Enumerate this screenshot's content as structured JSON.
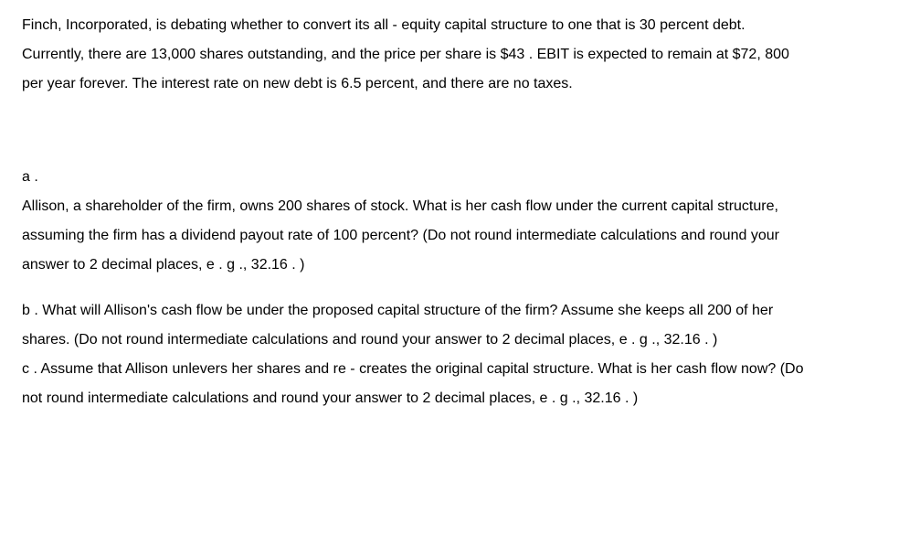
{
  "intro": {
    "line1": "Finch, Incorporated, is debating whether to convert its all - equity capital structure to one that is 30 percent debt.",
    "line2": "Currently, there are 13,000 shares outstanding, and the price per share is $43 .  EBIT is expected to remain at $72, 800",
    "line3": "per year forever. The interest rate on new debt is 6.5 percent, and there are no taxes."
  },
  "parts": {
    "a": {
      "label": "a .",
      "line1": "Allison, a shareholder of the firm, owns 200 shares of stock. What is her cash flow under the current capital structure,",
      "line2": "assuming the firm has a dividend payout rate of 100 percent? (Do not round intermediate calculations and round your",
      "line3": "answer to 2 decimal places, e . g .,  32.16 . )"
    },
    "b": {
      "line1": "b .  What will Allison's cash flow be under the proposed capital structure of the firm? Assume she keeps all 200 of her",
      "line2": "shares. (Do not round intermediate calculations and round your answer to 2 decimal places, e . g .,  32.16 . )"
    },
    "c": {
      "line1": "c .  Assume that Allison unlevers her shares and re - creates the original capital structure. What is her cash flow now? (Do",
      "line2": "not round intermediate calculations and round your answer to 2 decimal places, e . g .,  32.16 . )"
    }
  },
  "styling": {
    "background_color": "#ffffff",
    "text_color": "#000000",
    "font_family": "Arial, Helvetica, sans-serif",
    "font_size_pt": 12,
    "line_height": 2.0
  }
}
